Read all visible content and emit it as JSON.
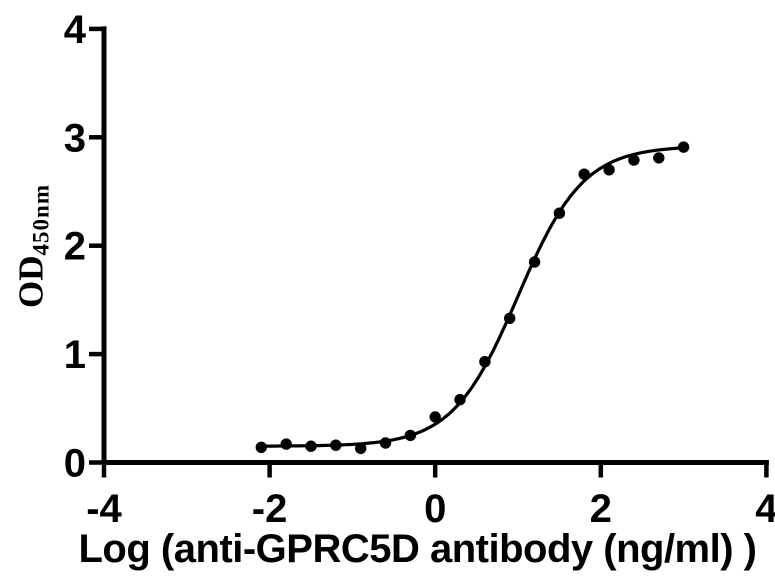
{
  "chart_data": {
    "type": "scatter",
    "title": "",
    "xlabel": "Log (anti-GPRC5D antibody (ng/ml) )",
    "ylabel": "OD450nm",
    "ylabel_main": "OD",
    "ylabel_sub": "450nm",
    "xlim": [
      -4,
      4
    ],
    "ylim": [
      0,
      4
    ],
    "xticks": [
      -4,
      -2,
      0,
      2,
      4
    ],
    "yticks": [
      0,
      1,
      2,
      3,
      4
    ],
    "grid": false,
    "legend": false,
    "colors": {
      "background": "#ffffff",
      "axis": "#000000",
      "marker": "#000000",
      "curve": "#000000"
    },
    "points": {
      "x": [
        -2.1,
        -1.8,
        -1.5,
        -1.2,
        -0.9,
        -0.6,
        -0.3,
        0.0,
        0.3,
        0.6,
        0.9,
        1.2,
        1.5,
        1.8,
        2.1,
        2.4,
        2.7,
        3.0
      ],
      "od": [
        0.14,
        0.17,
        0.15,
        0.16,
        0.13,
        0.18,
        0.25,
        0.42,
        0.58,
        0.93,
        1.33,
        1.85,
        2.3,
        2.66,
        2.7,
        2.79,
        2.81,
        2.91
      ]
    },
    "fit_curve": {
      "model": "4PL sigmoidal dose-response",
      "bottom": 0.15,
      "top": 2.92,
      "log_ec50": 1.0,
      "hill_slope": 1.1,
      "x_start": -2.1,
      "x_end": 3.0
    }
  }
}
